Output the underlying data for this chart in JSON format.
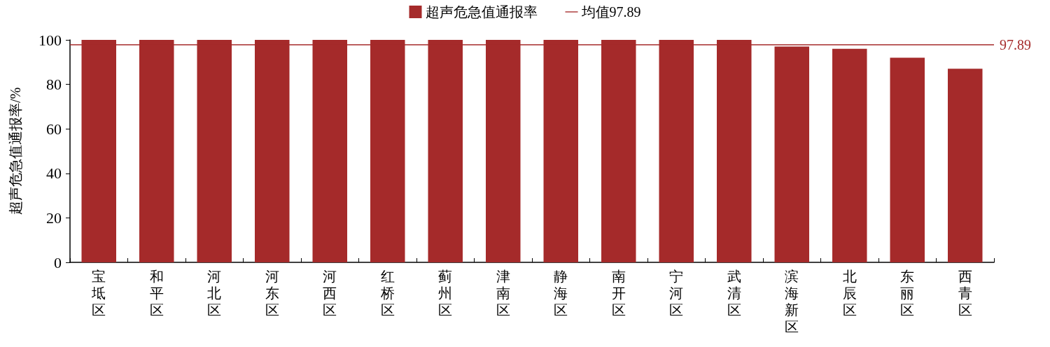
{
  "chart_data": {
    "type": "bar",
    "ylabel": "超声危急值通报率/%",
    "categories": [
      "宝坻区",
      "和平区",
      "河北区",
      "河东区",
      "河西区",
      "红桥区",
      "蓟州区",
      "津南区",
      "静海区",
      "南开区",
      "宁河区",
      "武清区",
      "滨海新区",
      "北辰区",
      "东丽区",
      "西青区"
    ],
    "series": [
      {
        "name": "超声危急值通报率",
        "color": "#a52a2a",
        "values": [
          100,
          100,
          100,
          100,
          100,
          100,
          100,
          100,
          100,
          100,
          100,
          100,
          97,
          96,
          92,
          87
        ]
      }
    ],
    "ylim": [
      0,
      100
    ],
    "yticks": [
      0,
      20,
      40,
      60,
      80,
      100
    ],
    "grid": false,
    "legend": "top",
    "ref_lines": [
      {
        "axis": "y",
        "value": 97.89,
        "label": "97.89",
        "color": "#a52a2a",
        "line_style": "solid"
      }
    ],
    "annotations": [
      "均值97.89"
    ]
  }
}
